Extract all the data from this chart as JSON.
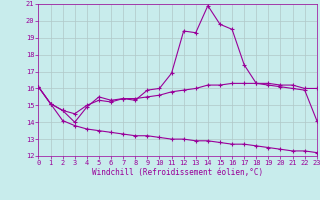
{
  "title": "",
  "xlabel": "Windchill (Refroidissement éolien,°C)",
  "background_color": "#c8ecec",
  "line_color": "#990099",
  "grid_color": "#b0c8c8",
  "xlim": [
    0,
    23
  ],
  "ylim": [
    12,
    21
  ],
  "xticks": [
    0,
    1,
    2,
    3,
    4,
    5,
    6,
    7,
    8,
    9,
    10,
    11,
    12,
    13,
    14,
    15,
    16,
    17,
    18,
    19,
    20,
    21,
    22,
    23
  ],
  "yticks": [
    12,
    13,
    14,
    15,
    16,
    17,
    18,
    19,
    20,
    21
  ],
  "line1_x": [
    0,
    1,
    2,
    3,
    4,
    5,
    6,
    7,
    8,
    9,
    10,
    11,
    12,
    13,
    14,
    15,
    16,
    17,
    18,
    19,
    20,
    21,
    22,
    23
  ],
  "line1_y": [
    16.1,
    15.1,
    14.7,
    14.0,
    14.9,
    15.5,
    15.3,
    15.4,
    15.3,
    15.9,
    16.0,
    16.9,
    19.4,
    19.3,
    20.9,
    19.8,
    19.5,
    17.4,
    16.3,
    16.2,
    16.1,
    16.0,
    15.9,
    14.1
  ],
  "line2_x": [
    0,
    1,
    2,
    3,
    4,
    5,
    6,
    7,
    8,
    9,
    10,
    11,
    12,
    13,
    14,
    15,
    16,
    17,
    18,
    19,
    20,
    21,
    22,
    23
  ],
  "line2_y": [
    16.1,
    15.1,
    14.7,
    14.5,
    15.0,
    15.3,
    15.2,
    15.4,
    15.4,
    15.5,
    15.6,
    15.8,
    15.9,
    16.0,
    16.2,
    16.2,
    16.3,
    16.3,
    16.3,
    16.3,
    16.2,
    16.2,
    16.0,
    16.0
  ],
  "line3_x": [
    0,
    1,
    2,
    3,
    4,
    5,
    6,
    7,
    8,
    9,
    10,
    11,
    12,
    13,
    14,
    15,
    16,
    17,
    18,
    19,
    20,
    21,
    22,
    23
  ],
  "line3_y": [
    16.1,
    15.1,
    14.1,
    13.8,
    13.6,
    13.5,
    13.4,
    13.3,
    13.2,
    13.2,
    13.1,
    13.0,
    13.0,
    12.9,
    12.9,
    12.8,
    12.7,
    12.7,
    12.6,
    12.5,
    12.4,
    12.3,
    12.3,
    12.2
  ]
}
